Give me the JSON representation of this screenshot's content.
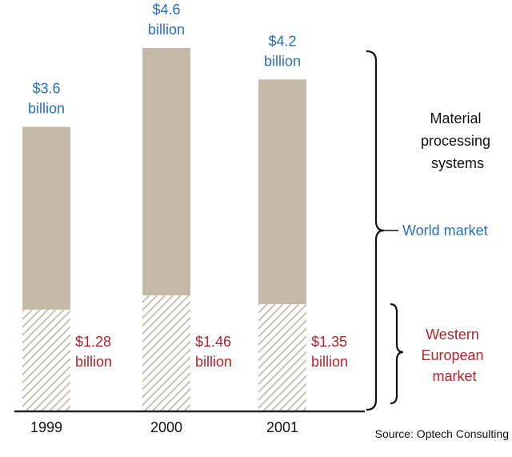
{
  "chart_data": {
    "type": "bar",
    "categories": [
      "1999",
      "2000",
      "2001"
    ],
    "series": [
      {
        "name": "World market",
        "values": [
          3.6,
          4.6,
          4.2
        ],
        "labels": [
          "$3.6 billion",
          "$4.6 billion",
          "$4.2 billion"
        ]
      },
      {
        "name": "Western European market",
        "values": [
          1.28,
          1.46,
          1.35
        ],
        "labels": [
          "$1.28 billion",
          "$1.46 billion",
          "$1.35 billion"
        ]
      }
    ],
    "ylim": [
      0,
      5
    ],
    "bracket_heading": "Material processing systems",
    "grid": false
  },
  "annotations": {
    "world_market_label": "World market",
    "western_label": "Western European market",
    "source": "Source: Optech Consulting"
  },
  "colors": {
    "bar_fill": "#c5baa8",
    "hatch_line": "#c5baa8",
    "world_text": "#2a6fb8",
    "western_text": "#b3232a",
    "axis": "#222222"
  }
}
